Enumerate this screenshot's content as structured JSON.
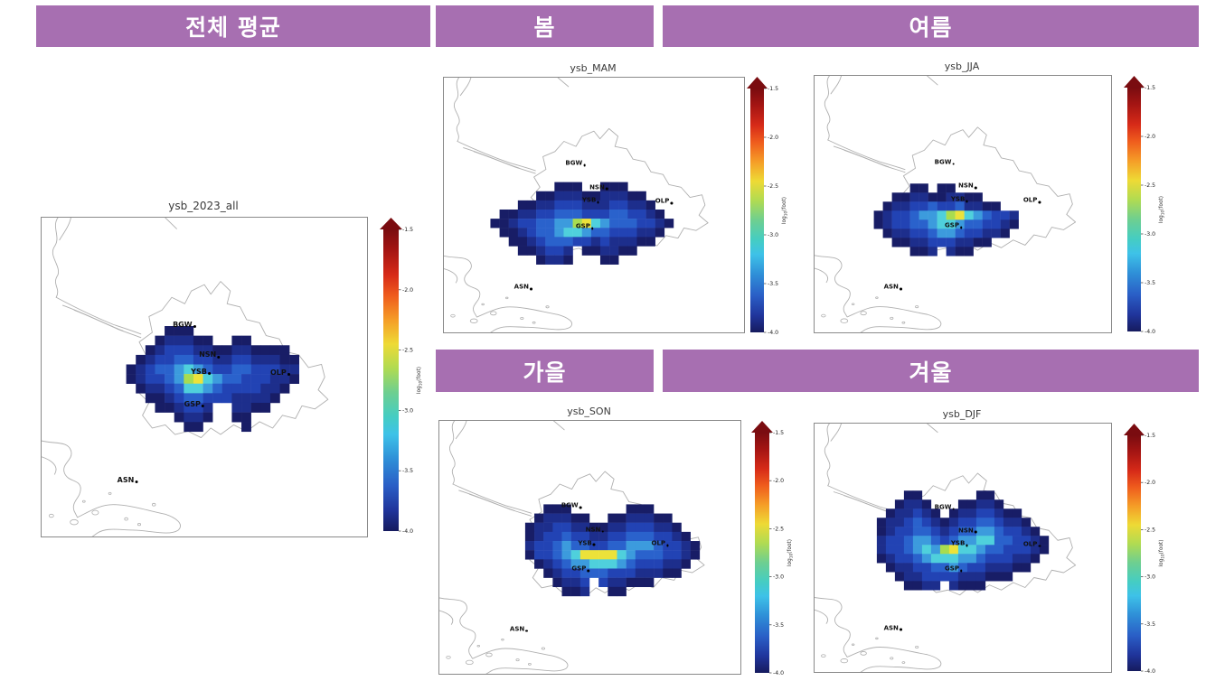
{
  "figure": {
    "background": "#ffffff",
    "header_bar_color": "#a76fb1",
    "header_text_color": "#ffffff",
    "frame_color": "#8a8a8a",
    "contour_color": "#b0b0b0"
  },
  "headers": [
    {
      "id": "overall",
      "label": "전체 평균"
    },
    {
      "id": "spring",
      "label": "봄"
    },
    {
      "id": "summer",
      "label": "여름"
    },
    {
      "id": "autumn",
      "label": "가을"
    },
    {
      "id": "winter",
      "label": "겨울"
    }
  ],
  "colorbar": {
    "label_prefix": "log",
    "label_sub": "10",
    "label_suffix": "(foot)",
    "ticks": [
      "-1.5",
      "-2.0",
      "-2.5",
      "-3.0",
      "-3.5",
      "-4.0"
    ],
    "value_range": [
      -1.5,
      -4.0
    ],
    "arrow_color": "#7a0c10",
    "stops": [
      {
        "o": 0.0,
        "c": "#7a0c10"
      },
      {
        "o": 0.07,
        "c": "#a51513"
      },
      {
        "o": 0.15,
        "c": "#d62a18"
      },
      {
        "o": 0.22,
        "c": "#ef5c1d"
      },
      {
        "o": 0.3,
        "c": "#f59d27"
      },
      {
        "o": 0.38,
        "c": "#eeda35"
      },
      {
        "o": 0.46,
        "c": "#b0db52"
      },
      {
        "o": 0.54,
        "c": "#6ecf90"
      },
      {
        "o": 0.62,
        "c": "#45cdc2"
      },
      {
        "o": 0.68,
        "c": "#3ec2e8"
      },
      {
        "o": 0.76,
        "c": "#2f90d8"
      },
      {
        "o": 0.85,
        "c": "#2a5ec6"
      },
      {
        "o": 0.93,
        "c": "#20359c"
      },
      {
        "o": 1.0,
        "c": "#161b5e"
      }
    ]
  },
  "palette": {
    "1": "#181d66",
    "2": "#1d2e8c",
    "3": "#2243b4",
    "4": "#2a62cc",
    "5": "#3c9bdd",
    "6": "#4fd0dc",
    "7": "#a8dc50",
    "8": "#ece23a"
  },
  "stations": [
    {
      "name": "BGW",
      "fx": 0.442,
      "fy": 0.337
    },
    {
      "name": "NSN",
      "fx": 0.519,
      "fy": 0.431
    },
    {
      "name": "YSB",
      "fx": 0.492,
      "fy": 0.484
    },
    {
      "name": "OLP",
      "fx": 0.736,
      "fy": 0.487
    },
    {
      "name": "GSP",
      "fx": 0.472,
      "fy": 0.586
    },
    {
      "name": "ASN",
      "fx": 0.267,
      "fy": 0.824
    }
  ],
  "panels": [
    {
      "key": "overall",
      "season": "전체 평균",
      "title": "ysb_2023_all",
      "grid": {
        "ox": 0.26,
        "oy": 0.34,
        "cw": 0.0295,
        "rows": [
          "000011100000000000",
          "000122211001100000",
          "001233322112211110",
          "012334433223322211",
          "123445654334433322",
          "123345786544333221",
          "012234665433332210",
          "001123443332222100",
          "000112332002211000",
          "000001221001100000",
          "000000110000100000"
        ]
      }
    },
    {
      "key": "spring",
      "season": "봄",
      "title": "ysb_MAM",
      "grid": {
        "ox": 0.155,
        "oy": 0.41,
        "cw": 0.0305,
        "rows": [
          "00000001110011100000",
          "00000112221122211000",
          "00011223332223322100",
          "01122334443334433210",
          "11233445578654443321",
          "01123445665443332210",
          "00112344433232221100",
          "00011233201122110000",
          "00000122100011000000"
        ]
      }
    },
    {
      "key": "summer",
      "season": "여름",
      "title": "ysb_JJA",
      "grid": {
        "ox": 0.2,
        "oy": 0.42,
        "cw": 0.0305,
        "rows": [
          "0000110110000000",
          "0011221122110000",
          "0122334334221100",
          "1233455678654332",
          "1233445665443321",
          "0122334554332210",
          "0011223332211000",
          "0000112021100000"
        ]
      }
    },
    {
      "key": "autumn",
      "season": "가을",
      "title": "ysb_SON",
      "grid": {
        "ox": 0.285,
        "oy": 0.33,
        "cw": 0.0305,
        "rows": [
          "0011100000011100000",
          "0122211001122211000",
          "1223322112233322100",
          "1233433223344433210",
          "2334544334455543321",
          "1334568888654443321",
          "0123455666543332210",
          "0012334443332221100",
          "0001223032211100000",
          "0000112001100000000"
        ]
      }
    },
    {
      "key": "winter",
      "season": "겨울",
      "title": "ysb_DJF",
      "grid": {
        "ox": 0.21,
        "oy": 0.27,
        "cw": 0.0305,
        "rows": [
          "0001100000011000000",
          "0012210001122100000",
          "0122321012233211000",
          "1223432123344322100",
          "1233443234455433210",
          "2334554345566443321",
          "2334565786654433321",
          "1233456665543332210",
          "0122334454332221100",
          "0012233332221110000",
          "0001122021110000000"
        ]
      }
    }
  ]
}
